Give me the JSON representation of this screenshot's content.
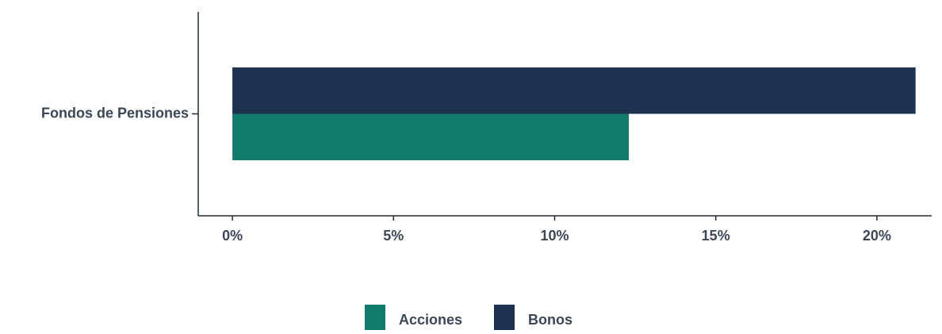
{
  "chart_data": {
    "type": "bar",
    "orientation": "horizontal",
    "categories": [
      "Fondos de Pensiones"
    ],
    "series": [
      {
        "name": "Acciones",
        "color": "#127a6a",
        "values": [
          12.3
        ]
      },
      {
        "name": "Bonos",
        "color": "#1f3350",
        "values": [
          21.2
        ]
      }
    ],
    "xlim": [
      -1.06,
      21.7
    ],
    "xticks": [
      {
        "value": 0,
        "label": "0%"
      },
      {
        "value": 5,
        "label": "5%"
      },
      {
        "value": 10,
        "label": "10%"
      },
      {
        "value": 15,
        "label": "15%"
      },
      {
        "value": 20,
        "label": "20%"
      }
    ],
    "grid": false,
    "legend": "bottom"
  }
}
